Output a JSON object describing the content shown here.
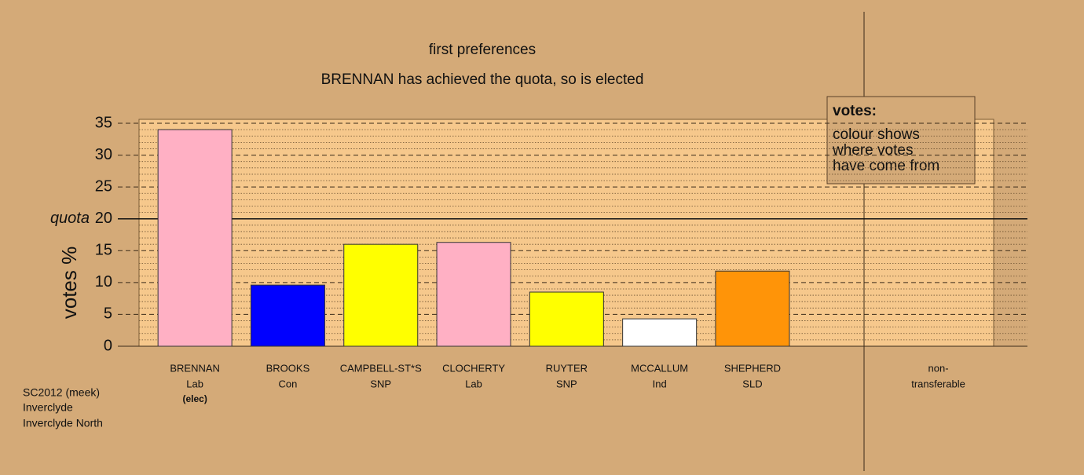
{
  "chart_data": {
    "type": "bar",
    "title": "first preferences",
    "subtitle": "BRENNAN has achieved the quota, so is elected",
    "y_label": "votes %",
    "categories": [
      "BRENNAN",
      "BROOKS",
      "CAMPBELL-ST*S",
      "CLOCHERTY",
      "RUYTER",
      "MCCALLUM",
      "SHEPHERD",
      null,
      "non-"
    ],
    "parties": [
      "Lab",
      "Con",
      "SNP",
      "Lab",
      "SNP",
      "Ind",
      "SLD",
      null,
      "transferable"
    ],
    "notes": [
      "(elec)",
      null,
      null,
      null,
      null,
      null,
      null,
      null,
      null
    ],
    "values": [
      34.0,
      9.6,
      16.0,
      16.3,
      8.5,
      4.3,
      11.8,
      null,
      null
    ],
    "colors": [
      "#ffb0c4",
      "#0000ff",
      "#ffff00",
      "#ffb0c4",
      "#ffff00",
      "#ffffff",
      "#ff9408",
      null,
      null
    ],
    "ylim": [
      0,
      35
    ],
    "yticks": [
      0,
      5,
      10,
      15,
      20,
      25,
      30,
      35
    ],
    "quota": {
      "value": 20,
      "label": "quota"
    },
    "grid": true,
    "legend": {
      "title": "votes:",
      "lines": [
        "colour shows",
        "where votes",
        "have come from"
      ]
    },
    "footer": [
      "SC2012 (meek)",
      "Inverclyde",
      "Inverclyde North"
    ]
  }
}
